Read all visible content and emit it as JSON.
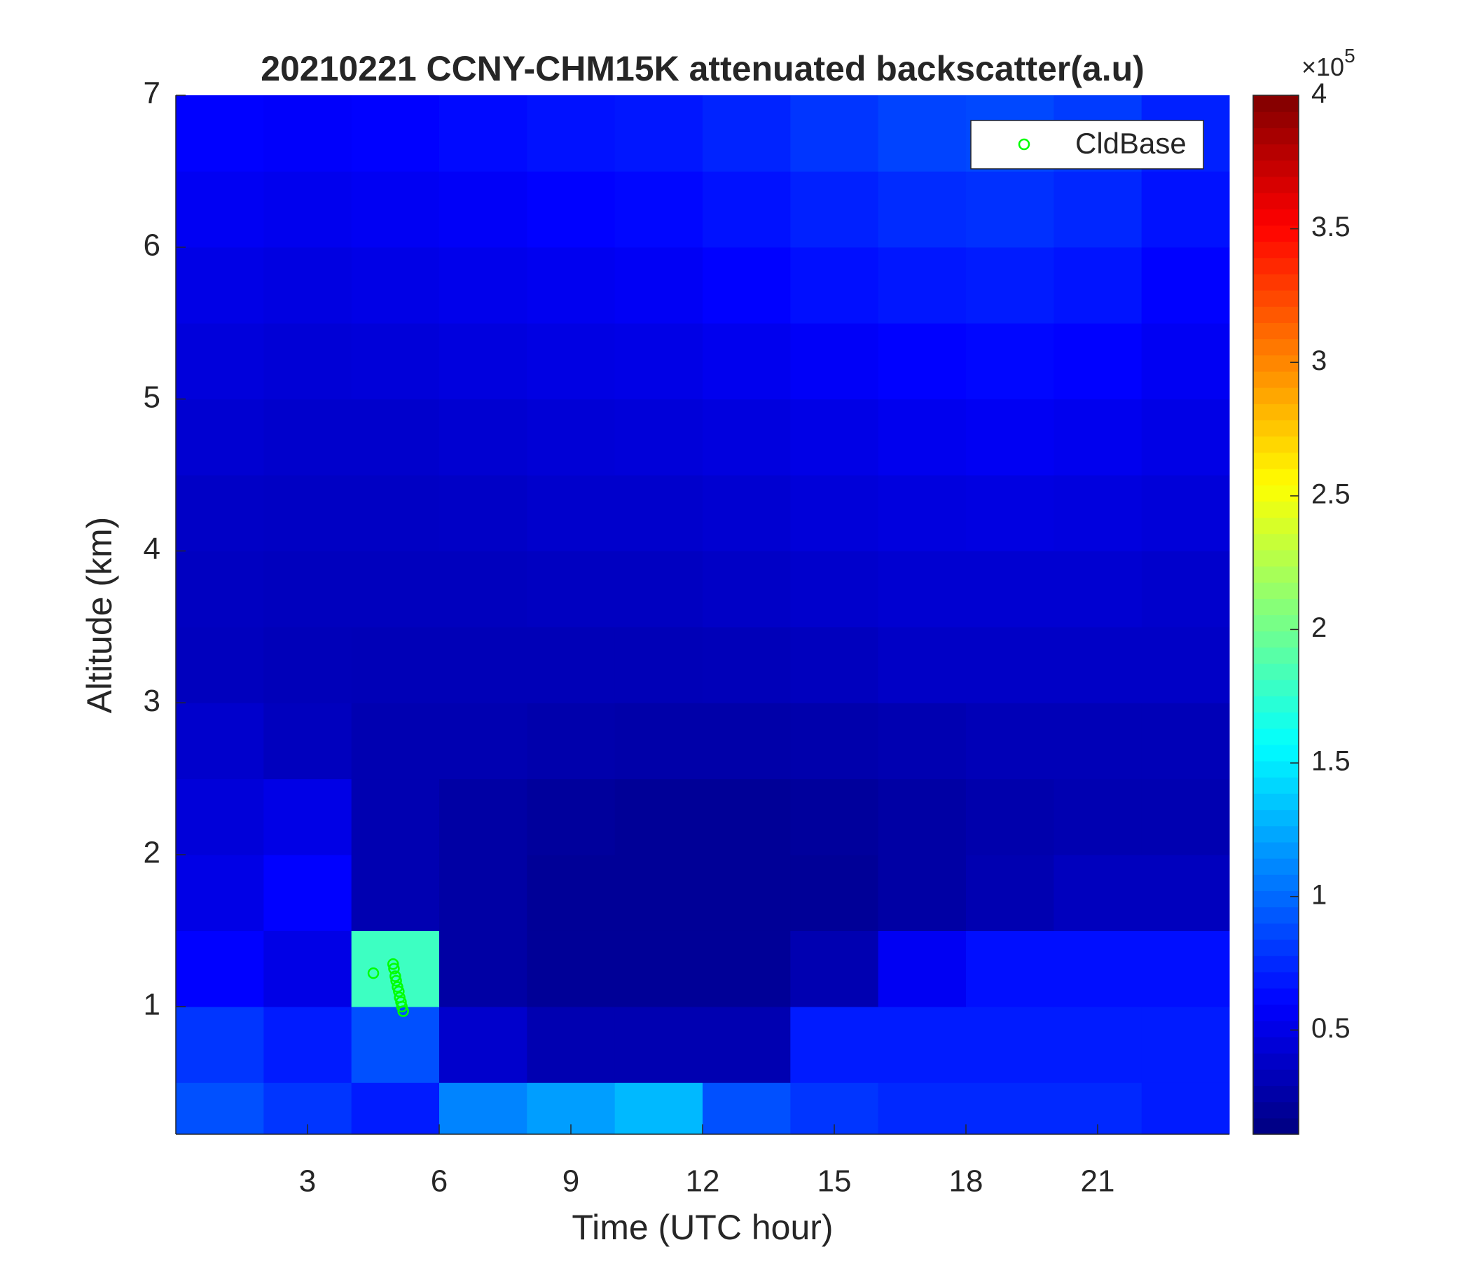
{
  "chart_data": {
    "type": "heatmap",
    "title": "20210221 CCNY-CHM15K attenuated backscatter(a.u)",
    "x_label": "Time (UTC hour)",
    "y_label": "Altitude (km)",
    "colormap": "jet",
    "xlim": [
      0,
      24
    ],
    "xticks": [
      3,
      6,
      9,
      12,
      15,
      18,
      21
    ],
    "ylim": [
      0.16,
      7
    ],
    "yticks": [
      1,
      2,
      3,
      4,
      5,
      6,
      7
    ],
    "x_edges": [
      0,
      2,
      4,
      6,
      8,
      10,
      12,
      14,
      16,
      18,
      20,
      22,
      24
    ],
    "y_edges": [
      0.16,
      0.5,
      1,
      1.5,
      2,
      2.5,
      3,
      3.5,
      4,
      4.5,
      5,
      5.5,
      6,
      6.5,
      7
    ],
    "z": [
      [
        0.9,
        0.8,
        0.7,
        1.1,
        1.2,
        1.3,
        0.9,
        0.8,
        0.75,
        0.75,
        0.75,
        0.7
      ],
      [
        0.8,
        0.7,
        0.9,
        0.4,
        0.3,
        0.3,
        0.3,
        0.7,
        0.7,
        0.7,
        0.7,
        0.7
      ],
      [
        0.6,
        0.5,
        1.8,
        0.25,
        0.2,
        0.2,
        0.2,
        0.3,
        0.55,
        0.65,
        0.65,
        0.65
      ],
      [
        0.5,
        0.6,
        0.3,
        0.25,
        0.2,
        0.2,
        0.2,
        0.2,
        0.25,
        0.3,
        0.35,
        0.35
      ],
      [
        0.45,
        0.5,
        0.3,
        0.25,
        0.22,
        0.2,
        0.2,
        0.22,
        0.25,
        0.28,
        0.3,
        0.3
      ],
      [
        0.4,
        0.35,
        0.3,
        0.3,
        0.28,
        0.27,
        0.27,
        0.28,
        0.3,
        0.32,
        0.32,
        0.32
      ],
      [
        0.35,
        0.33,
        0.32,
        0.32,
        0.32,
        0.32,
        0.33,
        0.35,
        0.38,
        0.38,
        0.38,
        0.38
      ],
      [
        0.36,
        0.35,
        0.35,
        0.35,
        0.36,
        0.36,
        0.38,
        0.4,
        0.42,
        0.42,
        0.42,
        0.4
      ],
      [
        0.38,
        0.37,
        0.37,
        0.38,
        0.4,
        0.4,
        0.42,
        0.45,
        0.47,
        0.48,
        0.47,
        0.45
      ],
      [
        0.42,
        0.4,
        0.4,
        0.42,
        0.44,
        0.45,
        0.47,
        0.5,
        0.53,
        0.55,
        0.53,
        0.5
      ],
      [
        0.46,
        0.44,
        0.45,
        0.47,
        0.49,
        0.5,
        0.53,
        0.57,
        0.6,
        0.62,
        0.6,
        0.55
      ],
      [
        0.5,
        0.48,
        0.5,
        0.52,
        0.54,
        0.56,
        0.6,
        0.65,
        0.68,
        0.7,
        0.67,
        0.6
      ],
      [
        0.55,
        0.53,
        0.55,
        0.57,
        0.6,
        0.62,
        0.66,
        0.72,
        0.76,
        0.78,
        0.74,
        0.66
      ],
      [
        0.6,
        0.58,
        0.6,
        0.63,
        0.66,
        0.68,
        0.73,
        0.8,
        0.85,
        0.87,
        0.82,
        0.72
      ]
    ],
    "clim": [
      0.11,
      4
    ],
    "colorbar_ticks": [
      0.5,
      1,
      1.5,
      2,
      2.5,
      3,
      3.5,
      4
    ],
    "colorbar_exponent_label": {
      "base": "×10",
      "exponent": "5"
    },
    "overlay": {
      "name": "CldBase",
      "color": "#00ff00",
      "x": [
        4.5,
        4.95,
        4.97,
        5.0,
        5.02,
        5.05,
        5.08,
        5.1,
        5.13,
        5.15,
        5.18
      ],
      "y": [
        1.22,
        1.28,
        1.25,
        1.2,
        1.17,
        1.13,
        1.1,
        1.06,
        1.03,
        1.0,
        0.97
      ]
    },
    "legend_position": "upper right"
  }
}
